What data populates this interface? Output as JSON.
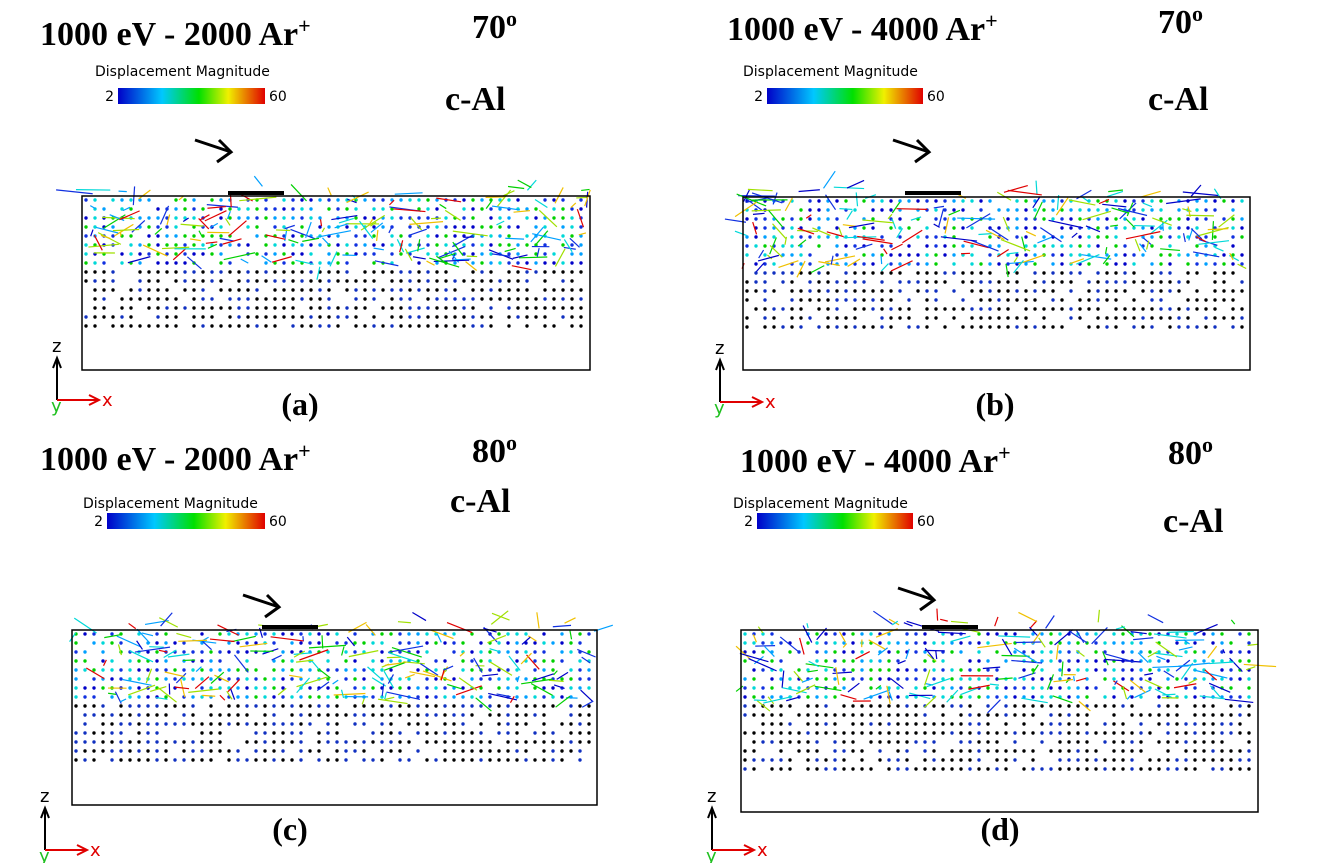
{
  "panels": [
    {
      "title": {
        "text": "1000 eV - 2000 Ar",
        "sup": "+"
      },
      "angle": {
        "text": "70",
        "sup": "o"
      },
      "material": "c-Al",
      "colorbar": {
        "label": "Displacement Magnitude",
        "min": 2,
        "max": 60
      },
      "axes": {
        "z": "z",
        "y": "y",
        "x": "x"
      },
      "caption": "(a)"
    },
    {
      "title": {
        "text": "1000 eV - 4000 Ar",
        "sup": "+"
      },
      "angle": {
        "text": "70",
        "sup": "o"
      },
      "material": "c-Al",
      "colorbar": {
        "label": "Displacement Magnitude",
        "min": 2,
        "max": 60
      },
      "axes": {
        "z": "z",
        "y": "y",
        "x": "x"
      },
      "caption": "(b)"
    },
    {
      "title": {
        "text": "1000 eV - 2000 Ar",
        "sup": "+"
      },
      "angle": {
        "text": "80",
        "sup": "o"
      },
      "material": "c-Al",
      "colorbar": {
        "label": "Displacement Magnitude",
        "min": 2,
        "max": 60
      },
      "axes": {
        "z": "z",
        "y": "y",
        "x": "x"
      },
      "caption": "(c)"
    },
    {
      "title": {
        "text": "1000 eV - 4000 Ar",
        "sup": "+"
      },
      "angle": {
        "text": "80",
        "sup": "o"
      },
      "material": "c-Al",
      "colorbar": {
        "label": "Displacement Magnitude",
        "min": 2,
        "max": 60
      },
      "axes": {
        "z": "z",
        "y": "y",
        "x": "x"
      },
      "caption": "(d)"
    }
  ]
}
